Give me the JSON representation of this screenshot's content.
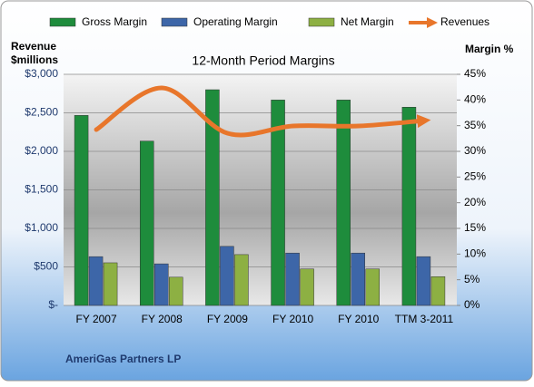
{
  "chart_data": {
    "type": "bar",
    "title": "12-Month Period Margins",
    "y_label": [
      "Revenue",
      "$millions"
    ],
    "y2_label": "Margin %",
    "footer": "AmeriGas Partners LP",
    "categories": [
      "FY 2007",
      "FY 2008",
      "FY 2009",
      "FY 2010",
      "FY 2010",
      "TTM 3-2011"
    ],
    "series": [
      {
        "name": "Gross Margin",
        "color": "#1e8c3c",
        "axis": "y2",
        "values": [
          37,
          32,
          42,
          40,
          40,
          38.6
        ]
      },
      {
        "name": "Operating Margin",
        "color": "#3d66a8",
        "axis": "y2",
        "values": [
          9.5,
          8.1,
          11.5,
          10.2,
          10.2,
          9.5
        ]
      },
      {
        "name": "Net Margin",
        "color": "#8db043",
        "axis": "y2",
        "values": [
          8.3,
          5.5,
          9.9,
          7.1,
          7.1,
          5.6
        ]
      },
      {
        "name": "Revenues",
        "color": "#e8762b",
        "type": "line",
        "values": [
          2282,
          2823,
          2235,
          2329,
          2329,
          2400
        ]
      }
    ],
    "ylim": [
      0,
      3000
    ],
    "yticks": [
      {
        "value": 0,
        "label": "$-"
      },
      {
        "value": 500,
        "label": "$500"
      },
      {
        "value": 1000,
        "label": "$1,000"
      },
      {
        "value": 1500,
        "label": "$1,500"
      },
      {
        "value": 2000,
        "label": "$2,000"
      },
      {
        "value": 2500,
        "label": "$2,500"
      },
      {
        "value": 3000,
        "label": "$3,000"
      }
    ],
    "y2lim": [
      0,
      45
    ],
    "y2ticks": [
      {
        "value": 0,
        "label": "0%"
      },
      {
        "value": 5,
        "label": "5%"
      },
      {
        "value": 10,
        "label": "10%"
      },
      {
        "value": 15,
        "label": "15%"
      },
      {
        "value": 20,
        "label": "20%"
      },
      {
        "value": 25,
        "label": "25%"
      },
      {
        "value": 30,
        "label": "30%"
      },
      {
        "value": 35,
        "label": "35%"
      },
      {
        "value": 40,
        "label": "40%"
      },
      {
        "value": 45,
        "label": "45%"
      }
    ],
    "grid": true
  }
}
